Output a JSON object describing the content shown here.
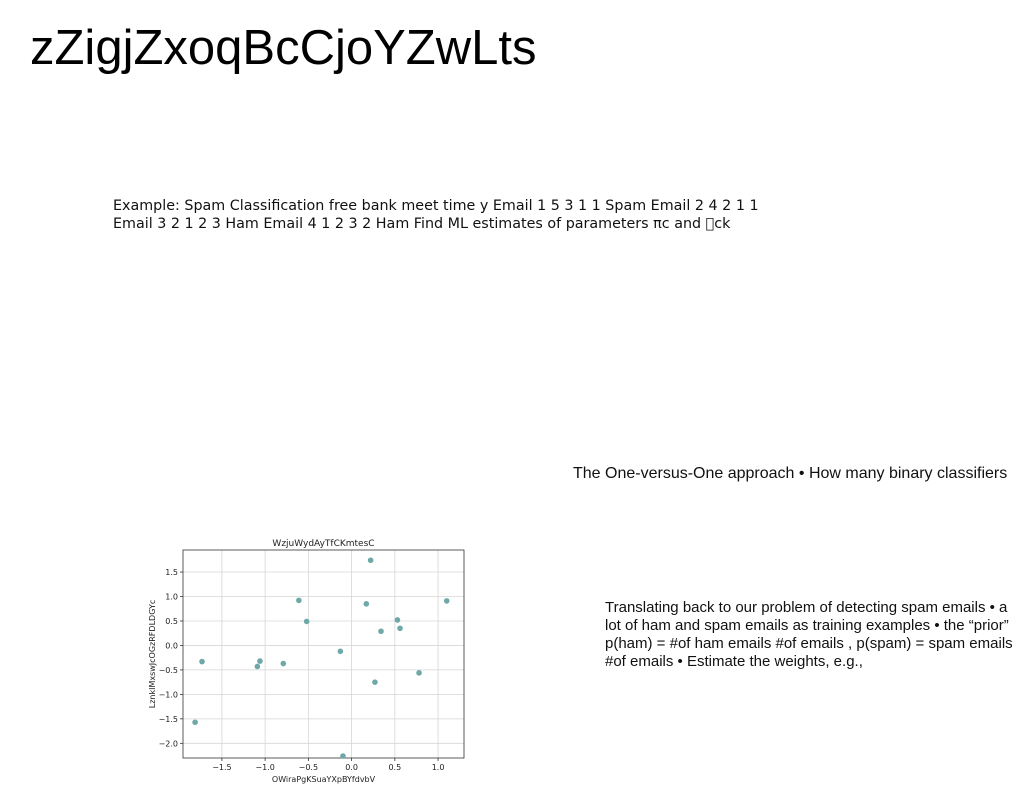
{
  "slide": {
    "title": "zZigjZxoqBcCjoYZwLts",
    "paragraph1": "Example: Spam Classification free bank meet time y Email 1 5 3 1 1 Spam Email 2 4 2 1 1 Email 3 2 1 2 3 Ham Email 4 1 2 3 2 Ham Find ML estimates of parameters πc and \u0000ck",
    "paragraph2": "The One-versus-One approach • How many binary classifiers",
    "paragraph3": "Translating back to our problem of detecting spam emails • a lot of ham and spam emails as training examples • the “prior” p(ham) = #of ham emails #of emails , p(spam) = spam emails #of emails • Estimate the weights, e.g.,"
  },
  "chart_data": {
    "type": "scatter",
    "title": "WzjuWydAyTfCKmtesC",
    "xlabel": "OWiraPgKSuaYXpBYfdvbV",
    "ylabel": "LznkIMxswJcOGzRFDLDGYc",
    "xlim": [
      -1.95,
      1.3
    ],
    "ylim": [
      -2.3,
      1.95
    ],
    "xticks": [
      -1.5,
      -1.0,
      -0.5,
      0.0,
      0.5,
      1.0
    ],
    "yticks": [
      1.5,
      1.0,
      0.5,
      0.0,
      -0.5,
      -1.0,
      -1.5,
      -2.0
    ],
    "grid": true,
    "marker_color": "#6fa8a8",
    "points": [
      {
        "x": -1.73,
        "y": -0.33
      },
      {
        "x": -1.09,
        "y": -0.43
      },
      {
        "x": -1.06,
        "y": -0.32
      },
      {
        "x": -0.79,
        "y": -0.37
      },
      {
        "x": -0.61,
        "y": 0.92
      },
      {
        "x": -0.52,
        "y": 0.49
      },
      {
        "x": -0.13,
        "y": -0.12
      },
      {
        "x": 0.17,
        "y": 0.85
      },
      {
        "x": 0.22,
        "y": 1.74
      },
      {
        "x": 0.34,
        "y": 0.29
      },
      {
        "x": 0.53,
        "y": 0.52
      },
      {
        "x": 0.56,
        "y": 0.35
      },
      {
        "x": 0.78,
        "y": -0.56
      },
      {
        "x": 1.1,
        "y": 0.91
      },
      {
        "x": 0.27,
        "y": -0.75
      },
      {
        "x": -1.81,
        "y": -1.57
      },
      {
        "x": -0.1,
        "y": -2.26
      }
    ]
  }
}
